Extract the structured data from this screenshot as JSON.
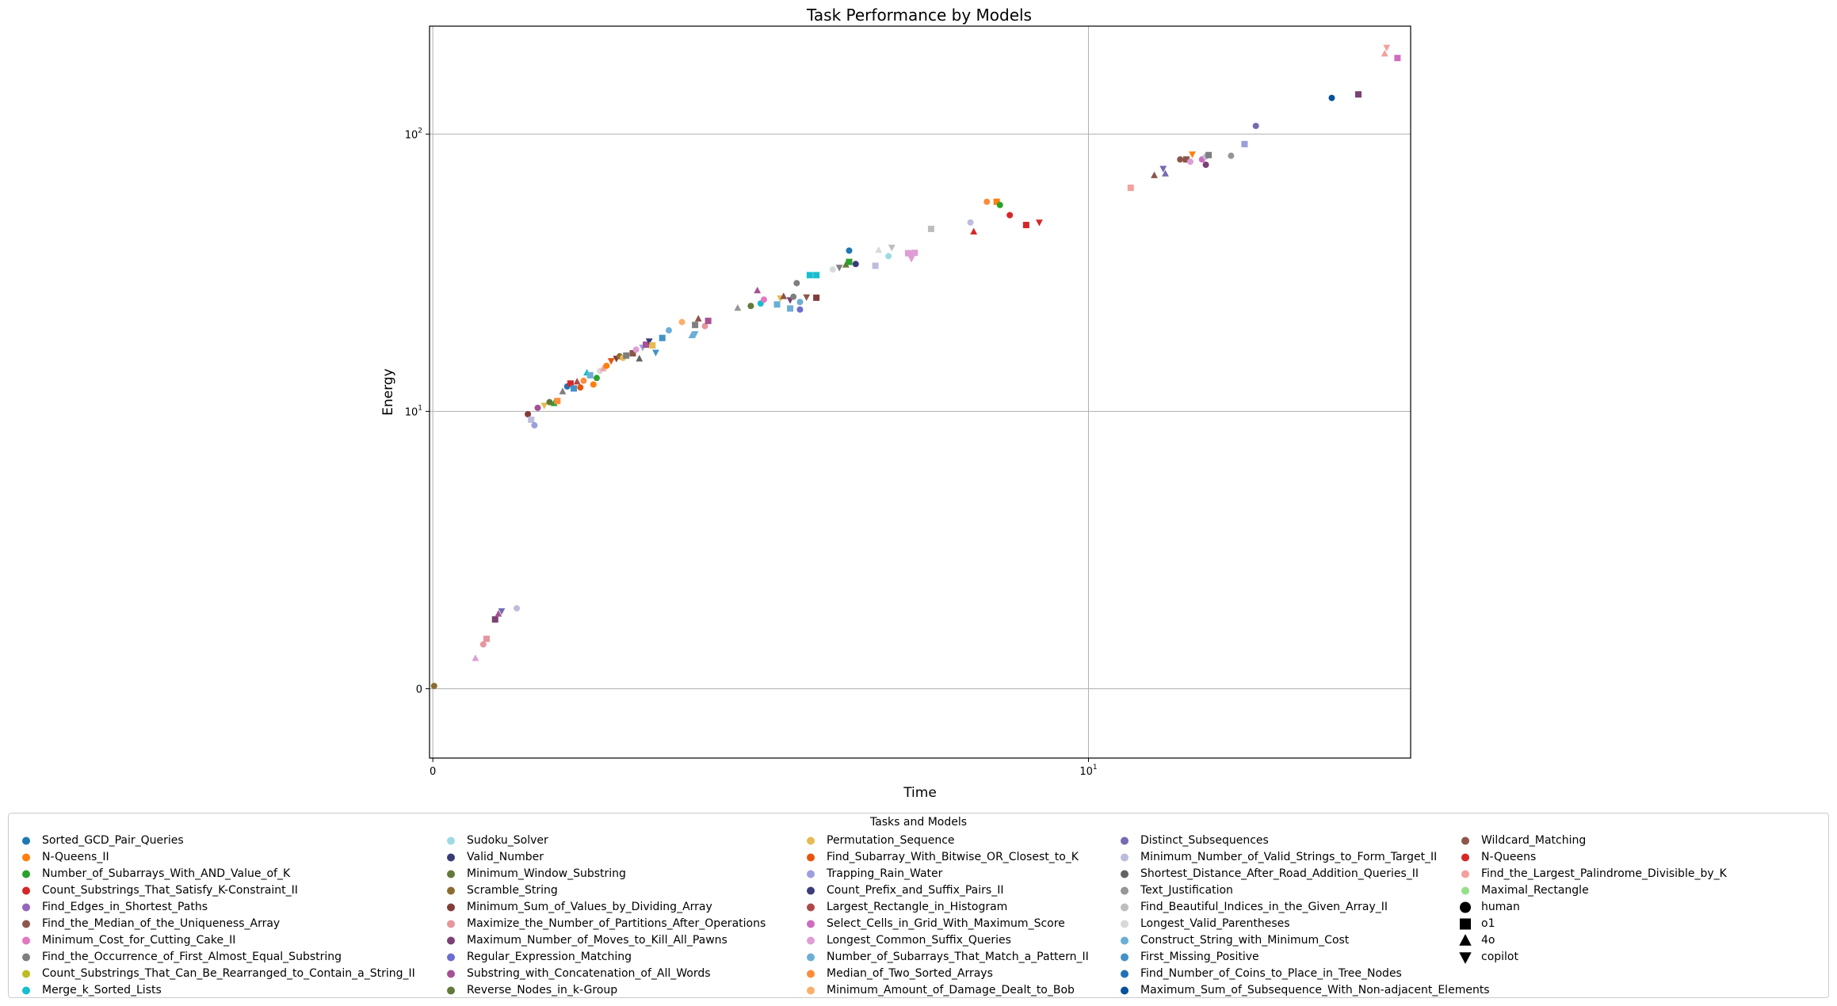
{
  "chart_data": {
    "type": "scatter",
    "title": "Task Performance by Models",
    "xlabel": "Time",
    "ylabel": "Energy",
    "xscale": "symlog",
    "yscale": "symlog",
    "xlim": [
      -0.05,
      31
    ],
    "ylim": [
      -2.5,
      245
    ],
    "xticks": [
      {
        "value": 0,
        "label": "0"
      },
      {
        "value": 10,
        "label": "10¹"
      }
    ],
    "yticks": [
      {
        "value": 0,
        "label": "0"
      },
      {
        "value": 10,
        "label": "10¹"
      },
      {
        "value": 100,
        "label": "10²"
      }
    ],
    "grid": true,
    "legend_title": "Tasks and Models",
    "legend_location": "bottom-center",
    "tasks": [
      {
        "name": "Sorted_GCD_Pair_Queries",
        "color": "#1f77b4"
      },
      {
        "name": "N-Queens_II",
        "color": "#ff7f0e"
      },
      {
        "name": "Number_of_Subarrays_With_AND_Value_of_K",
        "color": "#2ca02c"
      },
      {
        "name": "Count_Substrings_That_Satisfy_K-Constraint_II",
        "color": "#d62728"
      },
      {
        "name": "Find_Edges_in_Shortest_Paths",
        "color": "#9467bd"
      },
      {
        "name": "Find_the_Median_of_the_Uniqueness_Array",
        "color": "#8c564b"
      },
      {
        "name": "Minimum_Cost_for_Cutting_Cake_II",
        "color": "#e377c2"
      },
      {
        "name": "Find_the_Occurrence_of_First_Almost_Equal_Substring",
        "color": "#7f7f7f"
      },
      {
        "name": "Count_Substrings_That_Can_Be_Rearranged_to_Contain_a_String_II",
        "color": "#bcbd22"
      },
      {
        "name": "Merge_k_Sorted_Lists",
        "color": "#17becf"
      },
      {
        "name": "Sudoku_Solver",
        "color": "#9edae5"
      },
      {
        "name": "Valid_Number",
        "color": "#393b79"
      },
      {
        "name": "Minimum_Window_Substring",
        "color": "#637939"
      },
      {
        "name": "Scramble_String",
        "color": "#8c6d31"
      },
      {
        "name": "Minimum_Sum_of_Values_by_Dividing_Array",
        "color": "#843c39"
      },
      {
        "name": "Maximize_the_Number_of_Partitions_After_Operations",
        "color": "#e7969c"
      },
      {
        "name": "Maximum_Number_of_Moves_to_Kill_All_Pawns",
        "color": "#7b4173"
      },
      {
        "name": "Regular_Expression_Matching",
        "color": "#6b6ecf"
      },
      {
        "name": "Substring_with_Concatenation_of_All_Words",
        "color": "#a55194"
      },
      {
        "name": "Reverse_Nodes_in_k-Group",
        "color": "#637939"
      },
      {
        "name": "Permutation_Sequence",
        "color": "#e7ba52"
      },
      {
        "name": "Find_Subarray_With_Bitwise_OR_Closest_to_K",
        "color": "#e6550d"
      },
      {
        "name": "Trapping_Rain_Water",
        "color": "#9c9ede"
      },
      {
        "name": "Count_Prefix_and_Suffix_Pairs_II",
        "color": "#3a3d7a"
      },
      {
        "name": "Largest_Rectangle_in_Histogram",
        "color": "#ad494a"
      },
      {
        "name": "Select_Cells_in_Grid_With_Maximum_Score",
        "color": "#ce6dbd"
      },
      {
        "name": "Longest_Common_Suffix_Queries",
        "color": "#de9ed6"
      },
      {
        "name": "Number_of_Subarrays_That_Match_a_Pattern_II",
        "color": "#6baed6"
      },
      {
        "name": "Median_of_Two_Sorted_Arrays",
        "color": "#fd8d3c"
      },
      {
        "name": "Minimum_Amount_of_Damage_Dealt_to_Bob",
        "color": "#fdae6b"
      },
      {
        "name": "Distinct_Subsequences",
        "color": "#756bb1"
      },
      {
        "name": "Minimum_Number_of_Valid_Strings_to_Form_Target_II",
        "color": "#bcbddc"
      },
      {
        "name": "Shortest_Distance_After_Road_Addition_Queries_II",
        "color": "#636363"
      },
      {
        "name": "Text_Justification",
        "color": "#969696"
      },
      {
        "name": "Find_Beautiful_Indices_in_the_Given_Array_II",
        "color": "#bdbdbd"
      },
      {
        "name": "Longest_Valid_Parentheses",
        "color": "#d9d9d9"
      },
      {
        "name": "Construct_String_with_Minimum_Cost",
        "color": "#6baed6"
      },
      {
        "name": "First_Missing_Positive",
        "color": "#4292c6"
      },
      {
        "name": "Find_Number_of_Coins_to_Place_in_Tree_Nodes",
        "color": "#2171b5"
      },
      {
        "name": "Maximum_Sum_of_Subsequence_With_Non-adjacent_Elements",
        "color": "#08519c"
      },
      {
        "name": "Wildcard_Matching",
        "color": "#8c564b"
      },
      {
        "name": "N-Queens",
        "color": "#d62728"
      },
      {
        "name": "Find_the_Largest_Palindrome_Divisible_by_K",
        "color": "#f4a09c"
      },
      {
        "name": "Maximal_Rectangle",
        "color": "#98df8a"
      }
    ],
    "models": [
      {
        "name": "human",
        "marker": "circle"
      },
      {
        "name": "o1",
        "marker": "square"
      },
      {
        "name": "4o",
        "marker": "triangle-up"
      },
      {
        "name": "copilot",
        "marker": "triangle-down"
      }
    ],
    "points": [
      {
        "x": 0.02,
        "y": 0.1,
        "task": 13,
        "model": "human"
      },
      {
        "x": 0.65,
        "y": 1.1,
        "task": 26,
        "model": "4o"
      },
      {
        "x": 0.77,
        "y": 1.6,
        "task": 15,
        "model": "human"
      },
      {
        "x": 0.82,
        "y": 1.8,
        "task": 15,
        "model": "o1"
      },
      {
        "x": 0.95,
        "y": 2.5,
        "task": 16,
        "model": "o1"
      },
      {
        "x": 1.0,
        "y": 2.7,
        "task": 18,
        "model": "4o"
      },
      {
        "x": 1.05,
        "y": 2.8,
        "task": 30,
        "model": "copilot"
      },
      {
        "x": 1.28,
        "y": 2.9,
        "task": 31,
        "model": "human"
      },
      {
        "x": 1.45,
        "y": 9.9,
        "task": 14,
        "model": "human"
      },
      {
        "x": 1.5,
        "y": 9.7,
        "task": 31,
        "model": "o1"
      },
      {
        "x": 1.55,
        "y": 9.5,
        "task": 22,
        "model": "human"
      },
      {
        "x": 1.6,
        "y": 10.3,
        "task": 18,
        "model": "human"
      },
      {
        "x": 1.7,
        "y": 10.5,
        "task": 20,
        "model": "copilot"
      },
      {
        "x": 1.78,
        "y": 10.8,
        "task": 12,
        "model": "human"
      },
      {
        "x": 1.85,
        "y": 10.7,
        "task": 2,
        "model": "4o"
      },
      {
        "x": 1.9,
        "y": 10.9,
        "task": 28,
        "model": "o1"
      },
      {
        "x": 1.98,
        "y": 11.8,
        "task": 7,
        "model": "4o"
      },
      {
        "x": 2.05,
        "y": 12.3,
        "task": 0,
        "model": "human"
      },
      {
        "x": 2.1,
        "y": 12.6,
        "task": 3,
        "model": "o1"
      },
      {
        "x": 2.15,
        "y": 12.1,
        "task": 37,
        "model": "o1"
      },
      {
        "x": 2.2,
        "y": 12.8,
        "task": 24,
        "model": "4o"
      },
      {
        "x": 2.25,
        "y": 12.2,
        "task": 21,
        "model": "human"
      },
      {
        "x": 2.3,
        "y": 12.9,
        "task": 28,
        "model": "human"
      },
      {
        "x": 2.35,
        "y": 13.8,
        "task": 9,
        "model": "4o"
      },
      {
        "x": 2.4,
        "y": 13.5,
        "task": 36,
        "model": "o1"
      },
      {
        "x": 2.45,
        "y": 12.5,
        "task": 1,
        "model": "human"
      },
      {
        "x": 2.5,
        "y": 13.2,
        "task": 2,
        "model": "human"
      },
      {
        "x": 2.55,
        "y": 14.0,
        "task": 35,
        "model": "human"
      },
      {
        "x": 2.6,
        "y": 14.3,
        "task": 42,
        "model": "4o"
      },
      {
        "x": 2.65,
        "y": 14.6,
        "task": 1,
        "model": "human"
      },
      {
        "x": 2.72,
        "y": 15.2,
        "task": 21,
        "model": "copilot"
      },
      {
        "x": 2.8,
        "y": 15.5,
        "task": 14,
        "model": "copilot"
      },
      {
        "x": 2.85,
        "y": 15.8,
        "task": 13,
        "model": "human"
      },
      {
        "x": 2.9,
        "y": 15.6,
        "task": 20,
        "model": "human"
      },
      {
        "x": 2.95,
        "y": 15.9,
        "task": 7,
        "model": "o1"
      },
      {
        "x": 3.05,
        "y": 16.2,
        "task": 5,
        "model": "o1"
      },
      {
        "x": 3.1,
        "y": 16.7,
        "task": 26,
        "model": "human"
      },
      {
        "x": 3.15,
        "y": 15.5,
        "task": 32,
        "model": "4o"
      },
      {
        "x": 3.2,
        "y": 17.0,
        "task": 22,
        "model": "copilot"
      },
      {
        "x": 3.25,
        "y": 17.4,
        "task": 18,
        "model": "o1"
      },
      {
        "x": 3.3,
        "y": 17.9,
        "task": 11,
        "model": "copilot"
      },
      {
        "x": 3.35,
        "y": 17.3,
        "task": 20,
        "model": "o1"
      },
      {
        "x": 3.4,
        "y": 16.3,
        "task": 37,
        "model": "copilot"
      },
      {
        "x": 3.5,
        "y": 18.4,
        "task": 37,
        "model": "o1"
      },
      {
        "x": 3.6,
        "y": 19.6,
        "task": 36,
        "model": "human"
      },
      {
        "x": 3.8,
        "y": 21.0,
        "task": 29,
        "model": "human"
      },
      {
        "x": 4.0,
        "y": 20.5,
        "task": 7,
        "model": "o1"
      },
      {
        "x": 4.05,
        "y": 21.6,
        "task": 5,
        "model": "4o"
      },
      {
        "x": 4.15,
        "y": 20.3,
        "task": 15,
        "model": "human"
      },
      {
        "x": 4.2,
        "y": 21.2,
        "task": 18,
        "model": "o1"
      },
      {
        "x": 4.0,
        "y": 19.0,
        "task": 36,
        "model": "copilot"
      },
      {
        "x": 3.95,
        "y": 18.8,
        "task": 27,
        "model": "4o"
      },
      {
        "x": 4.65,
        "y": 23.6,
        "task": 33,
        "model": "4o"
      },
      {
        "x": 4.85,
        "y": 24.0,
        "task": 12,
        "model": "human"
      },
      {
        "x": 5.0,
        "y": 24.5,
        "task": 9,
        "model": "human"
      },
      {
        "x": 5.05,
        "y": 25.3,
        "task": 6,
        "model": "human"
      },
      {
        "x": 5.25,
        "y": 24.3,
        "task": 36,
        "model": "o1"
      },
      {
        "x": 5.3,
        "y": 25.6,
        "task": 20,
        "model": "copilot"
      },
      {
        "x": 5.35,
        "y": 26.0,
        "task": 5,
        "model": "4o"
      },
      {
        "x": 5.45,
        "y": 25.2,
        "task": 16,
        "model": "copilot"
      },
      {
        "x": 5.5,
        "y": 25.9,
        "task": 7,
        "model": "human"
      },
      {
        "x": 5.6,
        "y": 24.8,
        "task": 36,
        "model": "human"
      },
      {
        "x": 5.7,
        "y": 25.8,
        "task": 5,
        "model": "copilot"
      },
      {
        "x": 5.85,
        "y": 25.7,
        "task": 14,
        "model": "o1"
      },
      {
        "x": 5.45,
        "y": 23.5,
        "task": 27,
        "model": "o1"
      },
      {
        "x": 5.6,
        "y": 23.3,
        "task": 17,
        "model": "human"
      },
      {
        "x": 4.95,
        "y": 27.3,
        "task": 18,
        "model": "4o"
      },
      {
        "x": 5.55,
        "y": 29.0,
        "task": 7,
        "model": "human"
      },
      {
        "x": 5.75,
        "y": 31.0,
        "task": 9,
        "model": "o1"
      },
      {
        "x": 5.85,
        "y": 31.0,
        "task": 9,
        "model": "o1"
      },
      {
        "x": 6.1,
        "y": 32.5,
        "task": 35,
        "model": "human"
      },
      {
        "x": 6.2,
        "y": 33.0,
        "task": 7,
        "model": "copilot"
      },
      {
        "x": 6.3,
        "y": 33.8,
        "task": 12,
        "model": "4o"
      },
      {
        "x": 6.35,
        "y": 34.6,
        "task": 2,
        "model": "o1"
      },
      {
        "x": 6.45,
        "y": 34.0,
        "task": 11,
        "model": "human"
      },
      {
        "x": 6.35,
        "y": 38.0,
        "task": 0,
        "model": "human"
      },
      {
        "x": 6.75,
        "y": 33.5,
        "task": 31,
        "model": "o1"
      },
      {
        "x": 6.8,
        "y": 38.2,
        "task": 35,
        "model": "4o"
      },
      {
        "x": 6.95,
        "y": 36.3,
        "task": 10,
        "model": "human"
      },
      {
        "x": 7.0,
        "y": 39.0,
        "task": 34,
        "model": "copilot"
      },
      {
        "x": 7.25,
        "y": 37.2,
        "task": 26,
        "model": "o1"
      },
      {
        "x": 7.3,
        "y": 37.0,
        "task": 26,
        "model": "human"
      },
      {
        "x": 7.3,
        "y": 35.5,
        "task": 26,
        "model": "copilot"
      },
      {
        "x": 7.35,
        "y": 37.3,
        "task": 26,
        "model": "o1"
      },
      {
        "x": 7.6,
        "y": 45.5,
        "task": 34,
        "model": "o1"
      },
      {
        "x": 8.2,
        "y": 48.0,
        "task": 31,
        "model": "human"
      },
      {
        "x": 8.25,
        "y": 44.5,
        "task": 3,
        "model": "4o"
      },
      {
        "x": 8.45,
        "y": 57.0,
        "task": 28,
        "model": "human"
      },
      {
        "x": 8.6,
        "y": 57.0,
        "task": 1,
        "model": "o1"
      },
      {
        "x": 8.65,
        "y": 55.5,
        "task": 2,
        "model": "human"
      },
      {
        "x": 8.8,
        "y": 51.0,
        "task": 41,
        "model": "human"
      },
      {
        "x": 9.05,
        "y": 47.0,
        "task": 3,
        "model": "o1"
      },
      {
        "x": 9.25,
        "y": 48.0,
        "task": 41,
        "model": "copilot"
      },
      {
        "x": 11.6,
        "y": 64.0,
        "task": 42,
        "model": "o1"
      },
      {
        "x": 12.6,
        "y": 71.0,
        "task": 5,
        "model": "4o"
      },
      {
        "x": 13.0,
        "y": 75.0,
        "task": 30,
        "model": "copilot"
      },
      {
        "x": 13.1,
        "y": 72.0,
        "task": 30,
        "model": "4o"
      },
      {
        "x": 13.8,
        "y": 81.0,
        "task": 40,
        "model": "human"
      },
      {
        "x": 14.1,
        "y": 81.0,
        "task": 5,
        "model": "o1"
      },
      {
        "x": 14.3,
        "y": 79.5,
        "task": 26,
        "model": "human"
      },
      {
        "x": 14.4,
        "y": 84.5,
        "task": 1,
        "model": "copilot"
      },
      {
        "x": 14.9,
        "y": 81.0,
        "task": 25,
        "model": "human"
      },
      {
        "x": 15.1,
        "y": 83.0,
        "task": 31,
        "model": "human"
      },
      {
        "x": 15.25,
        "y": 84.0,
        "task": 7,
        "model": "o1"
      },
      {
        "x": 15.1,
        "y": 77.5,
        "task": 16,
        "model": "human"
      },
      {
        "x": 16.5,
        "y": 83.5,
        "task": 33,
        "model": "human"
      },
      {
        "x": 17.3,
        "y": 92.0,
        "task": 22,
        "model": "o1"
      },
      {
        "x": 18.0,
        "y": 107.0,
        "task": 30,
        "model": "human"
      },
      {
        "x": 23.5,
        "y": 135.0,
        "task": 39,
        "model": "human"
      },
      {
        "x": 25.8,
        "y": 139.0,
        "task": 16,
        "model": "o1"
      },
      {
        "x": 28.5,
        "y": 205.0,
        "task": 42,
        "model": "copilot"
      },
      {
        "x": 28.3,
        "y": 195.0,
        "task": 42,
        "model": "4o"
      },
      {
        "x": 29.6,
        "y": 188.0,
        "task": 25,
        "model": "o1"
      }
    ]
  }
}
